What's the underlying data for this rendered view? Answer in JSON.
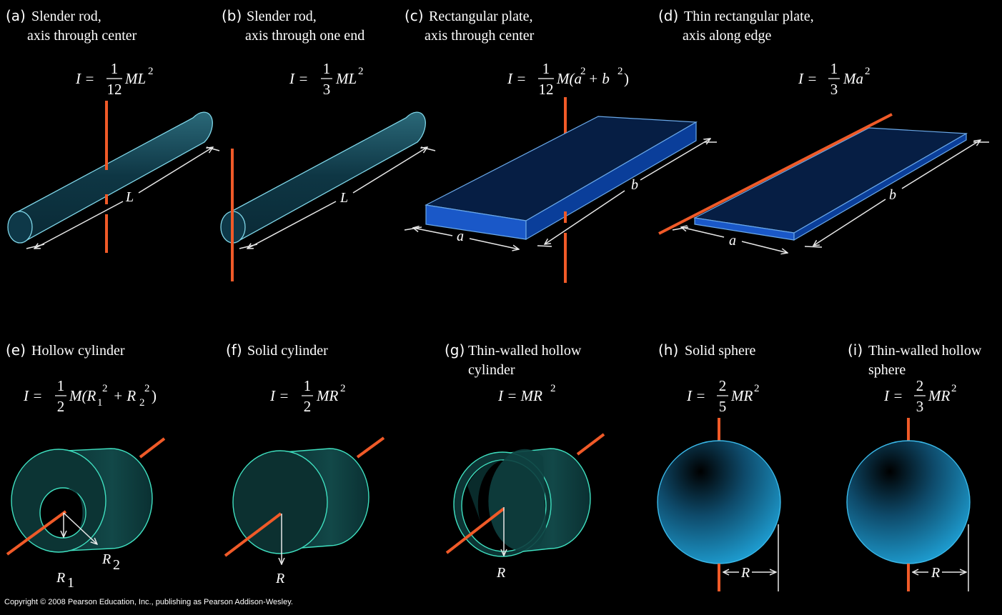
{
  "colors": {
    "background": "#000000",
    "axis": "#f05a28",
    "rod": "#0f3a48",
    "plate": "#06204a",
    "cylinder": "#0c3a3a",
    "sphere": "#1a8ec0"
  },
  "panels": [
    {
      "tag": "(a)",
      "caption": [
        "Slender rod,",
        "axis through center"
      ],
      "formula": {
        "lhs": "I =",
        "num": "1",
        "den": "12",
        "rest": "ML",
        "sup": "2"
      },
      "dims": [
        "L"
      ]
    },
    {
      "tag": "(b)",
      "caption": [
        "Slender rod,",
        "axis through one end"
      ],
      "formula": {
        "lhs": "I =",
        "num": "1",
        "den": "3",
        "rest": "ML",
        "sup": "2"
      },
      "dims": [
        "L"
      ]
    },
    {
      "tag": "(c)",
      "caption": [
        "Rectangular plate,",
        "axis through center"
      ],
      "formula": {
        "lhs": "I =",
        "num": "1",
        "den": "12",
        "rest": "M(a",
        "sup": "2",
        "rest2": "+ b",
        "sup2": "2",
        "tail": ")"
      },
      "dims": [
        "a",
        "b"
      ]
    },
    {
      "tag": "(d)",
      "caption": [
        "Thin rectangular plate,",
        "axis along edge"
      ],
      "formula": {
        "lhs": "I =",
        "num": "1",
        "den": "3",
        "rest": "Ma",
        "sup": "2"
      },
      "dims": [
        "a",
        "b"
      ]
    },
    {
      "tag": "(e)",
      "caption": [
        "Hollow cylinder"
      ],
      "formula": {
        "lhs": "I =",
        "num": "1",
        "den": "2",
        "rest": "M(R",
        "sub": "1",
        "sup": "2",
        "rest2": "+ R",
        "sub2": "2",
        "sup2": "2",
        "tail": ")"
      },
      "dims": [
        "R",
        "1",
        "R",
        "2"
      ]
    },
    {
      "tag": "(f)",
      "caption": [
        "Solid cylinder"
      ],
      "formula": {
        "lhs": "I =",
        "num": "1",
        "den": "2",
        "rest": "MR",
        "sup": "2"
      },
      "dims": [
        "R"
      ]
    },
    {
      "tag": "(g)",
      "caption": [
        "Thin-walled hollow",
        "cylinder"
      ],
      "formula": {
        "lhs": "I = MR",
        "sup": "2"
      },
      "dims": [
        "R"
      ]
    },
    {
      "tag": "(h)",
      "caption": [
        "Solid sphere"
      ],
      "formula": {
        "lhs": "I =",
        "num": "2",
        "den": "5",
        "rest": "MR",
        "sup": "2"
      },
      "dims": [
        "R"
      ]
    },
    {
      "tag": "(i)",
      "caption": [
        "Thin-walled hollow",
        "sphere"
      ],
      "formula": {
        "lhs": "I =",
        "num": "2",
        "den": "3",
        "rest": "MR",
        "sup": "2"
      },
      "dims": [
        "R"
      ]
    }
  ],
  "copyright": "Copyright © 2008 Pearson Education, Inc., publishing as Pearson Addison-Wesley."
}
